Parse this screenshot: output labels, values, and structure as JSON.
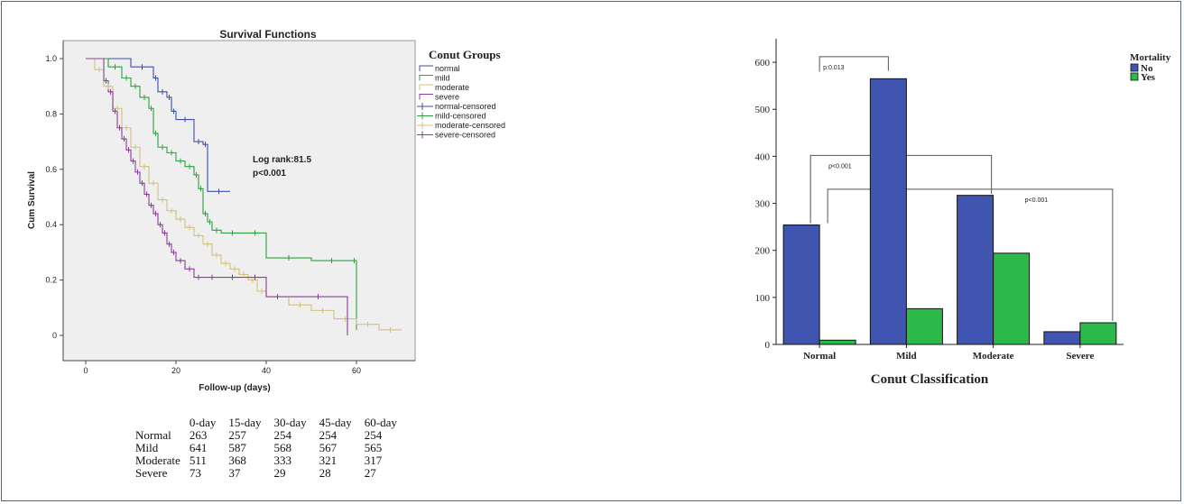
{
  "chart_data": [
    {
      "type": "line",
      "title": "Survival Functions",
      "xlabel": "Follow-up (days)",
      "ylabel": "Cum Survival",
      "xlim": [
        0,
        70
      ],
      "ylim": [
        0,
        1.0
      ],
      "xticks": [
        "0",
        "20",
        "40",
        "60"
      ],
      "yticks": [
        "0",
        "0.2",
        "0.4",
        "0.6",
        "0.8",
        "1.0"
      ],
      "grid": false,
      "legend_title": "Conut Groups",
      "legend_position": "right",
      "legend_entries": [
        "normal",
        "mild",
        "moderate",
        "severe",
        "normal-censored",
        "mild-censored",
        "moderate-censored",
        "severe-censored"
      ],
      "annotation_lines": [
        "Log rank:81.5",
        "p<0.001"
      ],
      "series": [
        {
          "name": "normal",
          "color": "#3c50a8",
          "x": [
            0,
            10,
            15,
            16,
            18,
            19,
            20,
            24,
            26,
            27,
            32
          ],
          "y": [
            1.0,
            0.97,
            0.93,
            0.88,
            0.86,
            0.81,
            0.78,
            0.7,
            0.69,
            0.52,
            0.52
          ]
        },
        {
          "name": "mild",
          "color": "#2ea040",
          "x": [
            0,
            5,
            8,
            10,
            12,
            14,
            15,
            16,
            18,
            20,
            22,
            24,
            25,
            26,
            27,
            28,
            30,
            35,
            40,
            50,
            59,
            60
          ],
          "y": [
            1.0,
            0.97,
            0.93,
            0.9,
            0.86,
            0.82,
            0.73,
            0.68,
            0.66,
            0.63,
            0.61,
            0.58,
            0.53,
            0.44,
            0.41,
            0.38,
            0.37,
            0.37,
            0.28,
            0.27,
            0.27,
            0.02
          ]
        },
        {
          "name": "moderate",
          "color": "#d2c07c",
          "x": [
            0,
            2,
            4,
            6,
            8,
            10,
            12,
            14,
            16,
            18,
            20,
            22,
            24,
            26,
            28,
            30,
            32,
            34,
            36,
            38,
            40,
            45,
            50,
            55,
            60,
            65,
            70
          ],
          "y": [
            1.0,
            0.96,
            0.9,
            0.82,
            0.75,
            0.68,
            0.61,
            0.55,
            0.49,
            0.45,
            0.42,
            0.39,
            0.36,
            0.33,
            0.29,
            0.26,
            0.24,
            0.22,
            0.2,
            0.16,
            0.14,
            0.11,
            0.09,
            0.06,
            0.04,
            0.02,
            0.02
          ]
        },
        {
          "name": "severe",
          "color": "#8a3c9a",
          "x": [
            0,
            4,
            5,
            6,
            7,
            8,
            9,
            10,
            11,
            12,
            13,
            14,
            15,
            16,
            17,
            18,
            19,
            20,
            22,
            24,
            26,
            30,
            35,
            40,
            45,
            58
          ],
          "y": [
            1.0,
            0.92,
            0.88,
            0.81,
            0.75,
            0.71,
            0.67,
            0.63,
            0.59,
            0.55,
            0.51,
            0.47,
            0.44,
            0.4,
            0.37,
            0.33,
            0.3,
            0.27,
            0.24,
            0.21,
            0.21,
            0.21,
            0.21,
            0.14,
            0.14,
            0.0
          ]
        }
      ]
    },
    {
      "type": "bar",
      "title": "",
      "xlabel": "Conut Classification",
      "ylabel": "",
      "ylim": [
        0,
        650
      ],
      "yticks": [
        "0",
        "100",
        "200",
        "300",
        "400",
        "500",
        "600"
      ],
      "categories": [
        "Normal",
        "Mild",
        "Moderate",
        "Severe"
      ],
      "legend_title": "Mortality",
      "legend_position": "top-right",
      "series": [
        {
          "name": "No",
          "color": "#3f55b0",
          "values": [
            254,
            565,
            317,
            27
          ]
        },
        {
          "name": "Yes",
          "color": "#2db84a",
          "values": [
            9,
            76,
            194,
            46
          ]
        }
      ],
      "annotations": [
        "p:0.013",
        "p<0.001",
        "p<0.001"
      ]
    }
  ],
  "risk_table": {
    "headers": [
      "0-day",
      "15-day",
      "30-day",
      "45-day",
      "60-day"
    ],
    "rows": [
      {
        "label": "Normal",
        "values": [
          "263",
          "257",
          "254",
          "254",
          "254"
        ]
      },
      {
        "label": "Mild",
        "values": [
          "641",
          "587",
          "568",
          "567",
          "565"
        ]
      },
      {
        "label": "Moderate",
        "values": [
          "511",
          "368",
          "333",
          "321",
          "317"
        ]
      },
      {
        "label": "Severe",
        "values": [
          "73",
          "37",
          "29",
          "28",
          "27"
        ]
      }
    ]
  }
}
